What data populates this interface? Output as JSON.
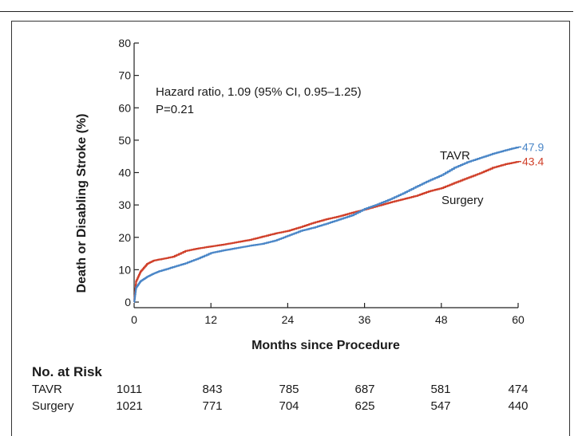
{
  "chart_data": {
    "type": "line",
    "xlabel": "Months since Procedure",
    "ylabel": "Death or Disabling Stroke (%)",
    "xlim": [
      0,
      60
    ],
    "ylim": [
      0,
      80
    ],
    "xticks": [
      0,
      12,
      24,
      36,
      48,
      60
    ],
    "yticks": [
      0,
      10,
      20,
      30,
      40,
      50,
      60,
      70,
      80
    ],
    "grid": false,
    "annotation": {
      "line1": "Hazard ratio, 1.09 (95% CI, 0.95–1.25)",
      "line2": "P=0.21"
    },
    "series": [
      {
        "name": "TAVR",
        "color": "#4a86c7",
        "end_label": "47.9",
        "x": [
          0,
          0.3,
          1,
          2,
          3,
          4,
          6,
          8,
          10,
          12,
          14,
          16,
          18,
          20,
          22,
          24,
          26,
          28,
          30,
          32,
          34,
          36,
          38,
          40,
          42,
          44,
          46,
          48,
          50,
          52,
          54,
          56,
          58,
          60
        ],
        "y": [
          0,
          4.5,
          6.5,
          7.8,
          8.8,
          9.6,
          10.8,
          12,
          13.5,
          15.2,
          16,
          16.7,
          17.4,
          18,
          19,
          20.5,
          22,
          23,
          24.2,
          25.5,
          26.8,
          28.8,
          30.2,
          31.8,
          33.6,
          35.6,
          37.5,
          39.2,
          41.5,
          43.2,
          44.5,
          45.8,
          46.9,
          47.9
        ]
      },
      {
        "name": "Surgery",
        "color": "#d0402a",
        "end_label": "43.4",
        "x": [
          0,
          0.3,
          1,
          2,
          3,
          4,
          6,
          8,
          10,
          12,
          14,
          16,
          18,
          20,
          22,
          24,
          26,
          28,
          30,
          32,
          34,
          36,
          38,
          40,
          42,
          44,
          46,
          48,
          50,
          52,
          54,
          56,
          58,
          60
        ],
        "y": [
          0,
          6.5,
          9.5,
          11.8,
          12.8,
          13.2,
          14,
          15.8,
          16.6,
          17.2,
          17.8,
          18.5,
          19.2,
          20.2,
          21.2,
          22,
          23.2,
          24.5,
          25.6,
          26.5,
          27.6,
          28.6,
          29.7,
          30.8,
          31.8,
          32.8,
          34.2,
          35.2,
          36.8,
          38.3,
          39.8,
          41.5,
          42.6,
          43.4
        ]
      }
    ]
  },
  "series_labels": {
    "tavr": "TAVR",
    "surgery": "Surgery"
  },
  "risk_table": {
    "title": "No. at Risk",
    "rows": [
      {
        "label": "TAVR",
        "values": [
          "1011",
          "843",
          "785",
          "687",
          "581",
          "474"
        ]
      },
      {
        "label": "Surgery",
        "values": [
          "1021",
          "771",
          "704",
          "625",
          "547",
          "440"
        ]
      }
    ]
  }
}
